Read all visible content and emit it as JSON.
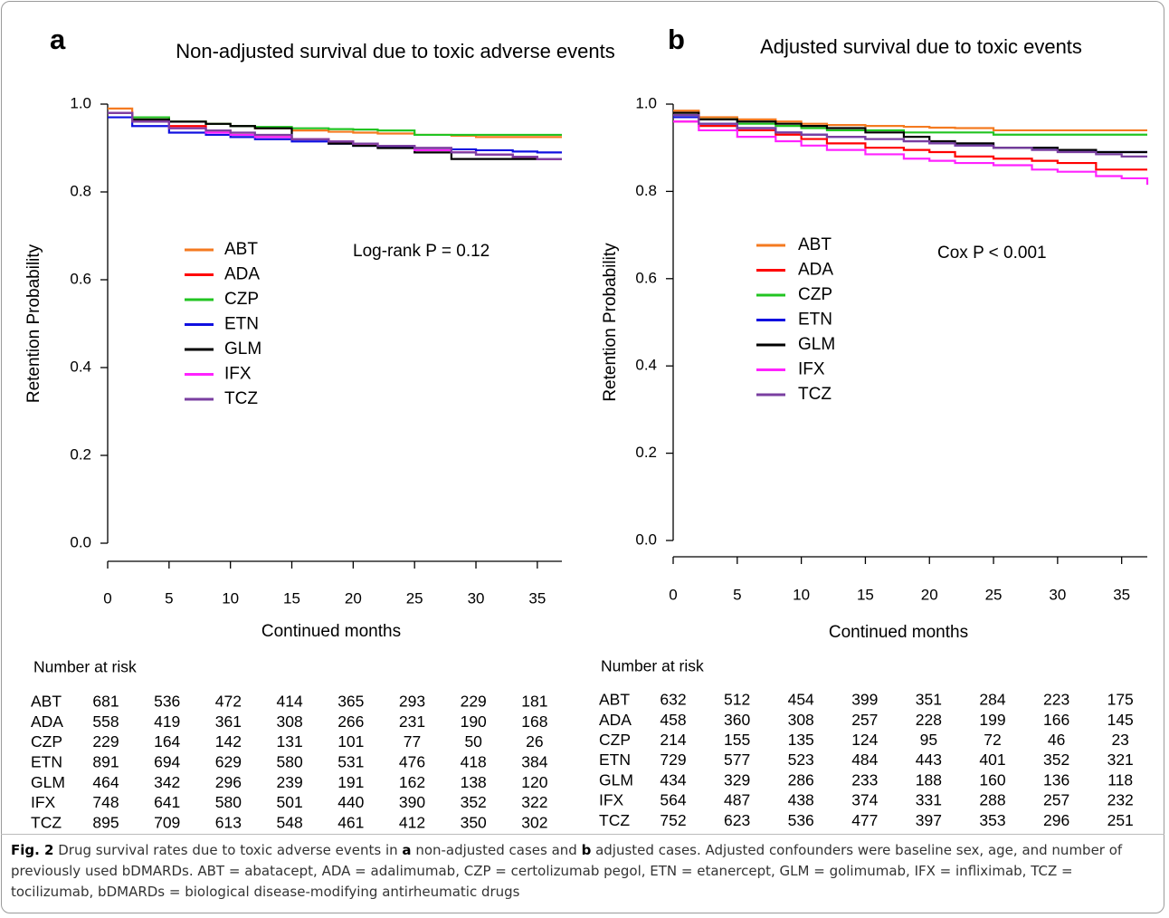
{
  "chart_data": [
    {
      "type": "line",
      "step": true,
      "panel": "a",
      "title": "Non-adjusted survival due to toxic adverse events",
      "xlabel": "Continued months",
      "ylabel": "Retention Probability",
      "annotation": "Log-rank P = 0.12",
      "x": [
        0,
        2,
        5,
        8,
        10,
        12,
        15,
        18,
        20,
        22,
        25,
        28,
        30,
        33,
        35,
        37
      ],
      "xlim": [
        0,
        37
      ],
      "xticks": [
        0,
        5,
        10,
        15,
        20,
        25,
        30,
        35
      ],
      "ylim": [
        0,
        1
      ],
      "yticks": [
        {
          "value": 0,
          "label": "0.0"
        },
        0.2,
        0.4,
        0.6,
        0.8,
        {
          "value": 1,
          "label": "1.0"
        }
      ],
      "series": [
        {
          "name": "ABT",
          "color": "#f47a20",
          "values": [
            0.99,
            0.97,
            0.96,
            0.955,
            0.95,
            0.945,
            0.94,
            0.937,
            0.935,
            0.933,
            0.93,
            0.928,
            0.925,
            0.925,
            0.925,
            0.925
          ]
        },
        {
          "name": "ADA",
          "color": "#ff0000",
          "values": [
            0.98,
            0.96,
            0.95,
            0.94,
            0.93,
            0.925,
            0.92,
            0.915,
            0.91,
            0.905,
            0.9,
            0.89,
            0.885,
            0.88,
            0.875,
            0.875
          ]
        },
        {
          "name": "CZP",
          "color": "#22c422",
          "values": [
            0.98,
            0.97,
            0.96,
            0.955,
            0.95,
            0.948,
            0.945,
            0.943,
            0.942,
            0.94,
            0.93,
            0.93,
            0.93,
            0.93,
            0.93,
            0.93
          ]
        },
        {
          "name": "ETN",
          "color": "#1010e0",
          "values": [
            0.97,
            0.95,
            0.935,
            0.93,
            0.925,
            0.92,
            0.915,
            0.91,
            0.905,
            0.902,
            0.9,
            0.897,
            0.895,
            0.892,
            0.89,
            0.89
          ]
        },
        {
          "name": "GLM",
          "color": "#000000",
          "values": [
            0.98,
            0.965,
            0.96,
            0.955,
            0.95,
            0.945,
            0.92,
            0.91,
            0.905,
            0.9,
            0.89,
            0.875,
            0.875,
            0.875,
            0.875,
            0.875
          ]
        },
        {
          "name": "IFX",
          "color": "#ff22ff",
          "values": [
            0.98,
            0.96,
            0.945,
            0.935,
            0.93,
            0.925,
            0.92,
            0.915,
            0.91,
            0.905,
            0.895,
            0.89,
            0.885,
            0.88,
            0.875,
            0.875
          ]
        },
        {
          "name": "TCZ",
          "color": "#7a3fa0",
          "values": [
            0.98,
            0.96,
            0.945,
            0.94,
            0.935,
            0.93,
            0.92,
            0.915,
            0.91,
            0.905,
            0.9,
            0.89,
            0.885,
            0.88,
            0.875,
            0.875
          ]
        }
      ],
      "risk_table": {
        "title": "Number at risk",
        "rows": [
          {
            "name": "ABT",
            "values": [
              681,
              536,
              472,
              414,
              365,
              293,
              229,
              181
            ]
          },
          {
            "name": "ADA",
            "values": [
              558,
              419,
              361,
              308,
              266,
              231,
              190,
              168
            ]
          },
          {
            "name": "CZP",
            "values": [
              229,
              164,
              142,
              131,
              101,
              77,
              50,
              26
            ]
          },
          {
            "name": "ETN",
            "values": [
              891,
              694,
              629,
              580,
              531,
              476,
              418,
              384
            ]
          },
          {
            "name": "GLM",
            "values": [
              464,
              342,
              296,
              239,
              191,
              162,
              138,
              120
            ]
          },
          {
            "name": "IFX",
            "values": [
              748,
              641,
              580,
              501,
              440,
              390,
              352,
              322
            ]
          },
          {
            "name": "TCZ",
            "values": [
              895,
              709,
              613,
              548,
              461,
              412,
              350,
              302
            ]
          }
        ]
      }
    },
    {
      "type": "line",
      "step": true,
      "panel": "b",
      "title": "Adjusted survival due to toxic events",
      "xlabel": "Continued months",
      "ylabel": "Retention Probability",
      "annotation": "Cox P < 0.001",
      "x": [
        0,
        2,
        5,
        8,
        10,
        12,
        15,
        18,
        20,
        22,
        25,
        28,
        30,
        33,
        35,
        37
      ],
      "xlim": [
        0,
        37
      ],
      "xticks": [
        0,
        5,
        10,
        15,
        20,
        25,
        30,
        35
      ],
      "ylim": [
        0,
        1
      ],
      "yticks": [
        {
          "value": 0,
          "label": "0.0"
        },
        0.2,
        0.4,
        0.6,
        0.8,
        {
          "value": 1,
          "label": "1.0"
        }
      ],
      "series": [
        {
          "name": "ABT",
          "color": "#f47a20",
          "values": [
            0.985,
            0.97,
            0.965,
            0.96,
            0.955,
            0.952,
            0.95,
            0.948,
            0.946,
            0.945,
            0.94,
            0.94,
            0.94,
            0.94,
            0.94,
            0.94
          ]
        },
        {
          "name": "ADA",
          "color": "#ff0000",
          "values": [
            0.96,
            0.95,
            0.94,
            0.93,
            0.92,
            0.91,
            0.9,
            0.895,
            0.89,
            0.88,
            0.875,
            0.87,
            0.865,
            0.85,
            0.85,
            0.85
          ]
        },
        {
          "name": "CZP",
          "color": "#22c422",
          "values": [
            0.975,
            0.965,
            0.955,
            0.95,
            0.945,
            0.94,
            0.94,
            0.935,
            0.935,
            0.935,
            0.93,
            0.93,
            0.93,
            0.93,
            0.93,
            0.93
          ]
        },
        {
          "name": "ETN",
          "color": "#1010e0",
          "values": [
            0.97,
            0.955,
            0.945,
            0.935,
            0.93,
            0.925,
            0.92,
            0.915,
            0.91,
            0.905,
            0.9,
            0.9,
            0.895,
            0.89,
            0.89,
            0.89
          ]
        },
        {
          "name": "GLM",
          "color": "#000000",
          "values": [
            0.98,
            0.965,
            0.96,
            0.955,
            0.95,
            0.945,
            0.935,
            0.925,
            0.915,
            0.91,
            0.9,
            0.9,
            0.895,
            0.89,
            0.89,
            0.89
          ]
        },
        {
          "name": "IFX",
          "color": "#ff22ff",
          "values": [
            0.96,
            0.94,
            0.925,
            0.915,
            0.905,
            0.895,
            0.885,
            0.875,
            0.87,
            0.865,
            0.86,
            0.85,
            0.845,
            0.835,
            0.83,
            0.815
          ]
        },
        {
          "name": "TCZ",
          "color": "#7a3fa0",
          "values": [
            0.975,
            0.955,
            0.945,
            0.935,
            0.93,
            0.925,
            0.92,
            0.915,
            0.91,
            0.905,
            0.9,
            0.895,
            0.89,
            0.885,
            0.88,
            0.88
          ]
        }
      ],
      "risk_table": {
        "title": "Number at risk",
        "rows": [
          {
            "name": "ABT",
            "values": [
              632,
              512,
              454,
              399,
              351,
              284,
              223,
              175
            ]
          },
          {
            "name": "ADA",
            "values": [
              458,
              360,
              308,
              257,
              228,
              199,
              166,
              145
            ]
          },
          {
            "name": "CZP",
            "values": [
              214,
              155,
              135,
              124,
              95,
              72,
              46,
              23
            ]
          },
          {
            "name": "ETN",
            "values": [
              729,
              577,
              523,
              484,
              443,
              401,
              352,
              321
            ]
          },
          {
            "name": "GLM",
            "values": [
              434,
              329,
              286,
              233,
              188,
              160,
              136,
              118
            ]
          },
          {
            "name": "IFX",
            "values": [
              564,
              487,
              438,
              374,
              331,
              288,
              257,
              232
            ]
          },
          {
            "name": "TCZ",
            "values": [
              752,
              623,
              536,
              477,
              397,
              353,
              296,
              251
            ]
          }
        ]
      }
    }
  ],
  "caption": [
    {
      "text": "Fig. 2",
      "bold": true
    },
    {
      "text": " Drug survival rates due to toxic adverse events in "
    },
    {
      "text": "a",
      "bold": true
    },
    {
      "text": " non-adjusted cases and "
    },
    {
      "text": "b",
      "bold": true
    },
    {
      "text": " adjusted cases. Adjusted confounders were baseline sex, age, and number of previously used bDMARDs. ABT = abatacept, ADA = adalimumab, CZP = certolizumab pegol, ETN = etanercept, GLM = golimumab, IFX = infliximab, TCZ = tocilizumab, bDMARDs = biological disease-modifying antirheumatic drugs"
    }
  ]
}
